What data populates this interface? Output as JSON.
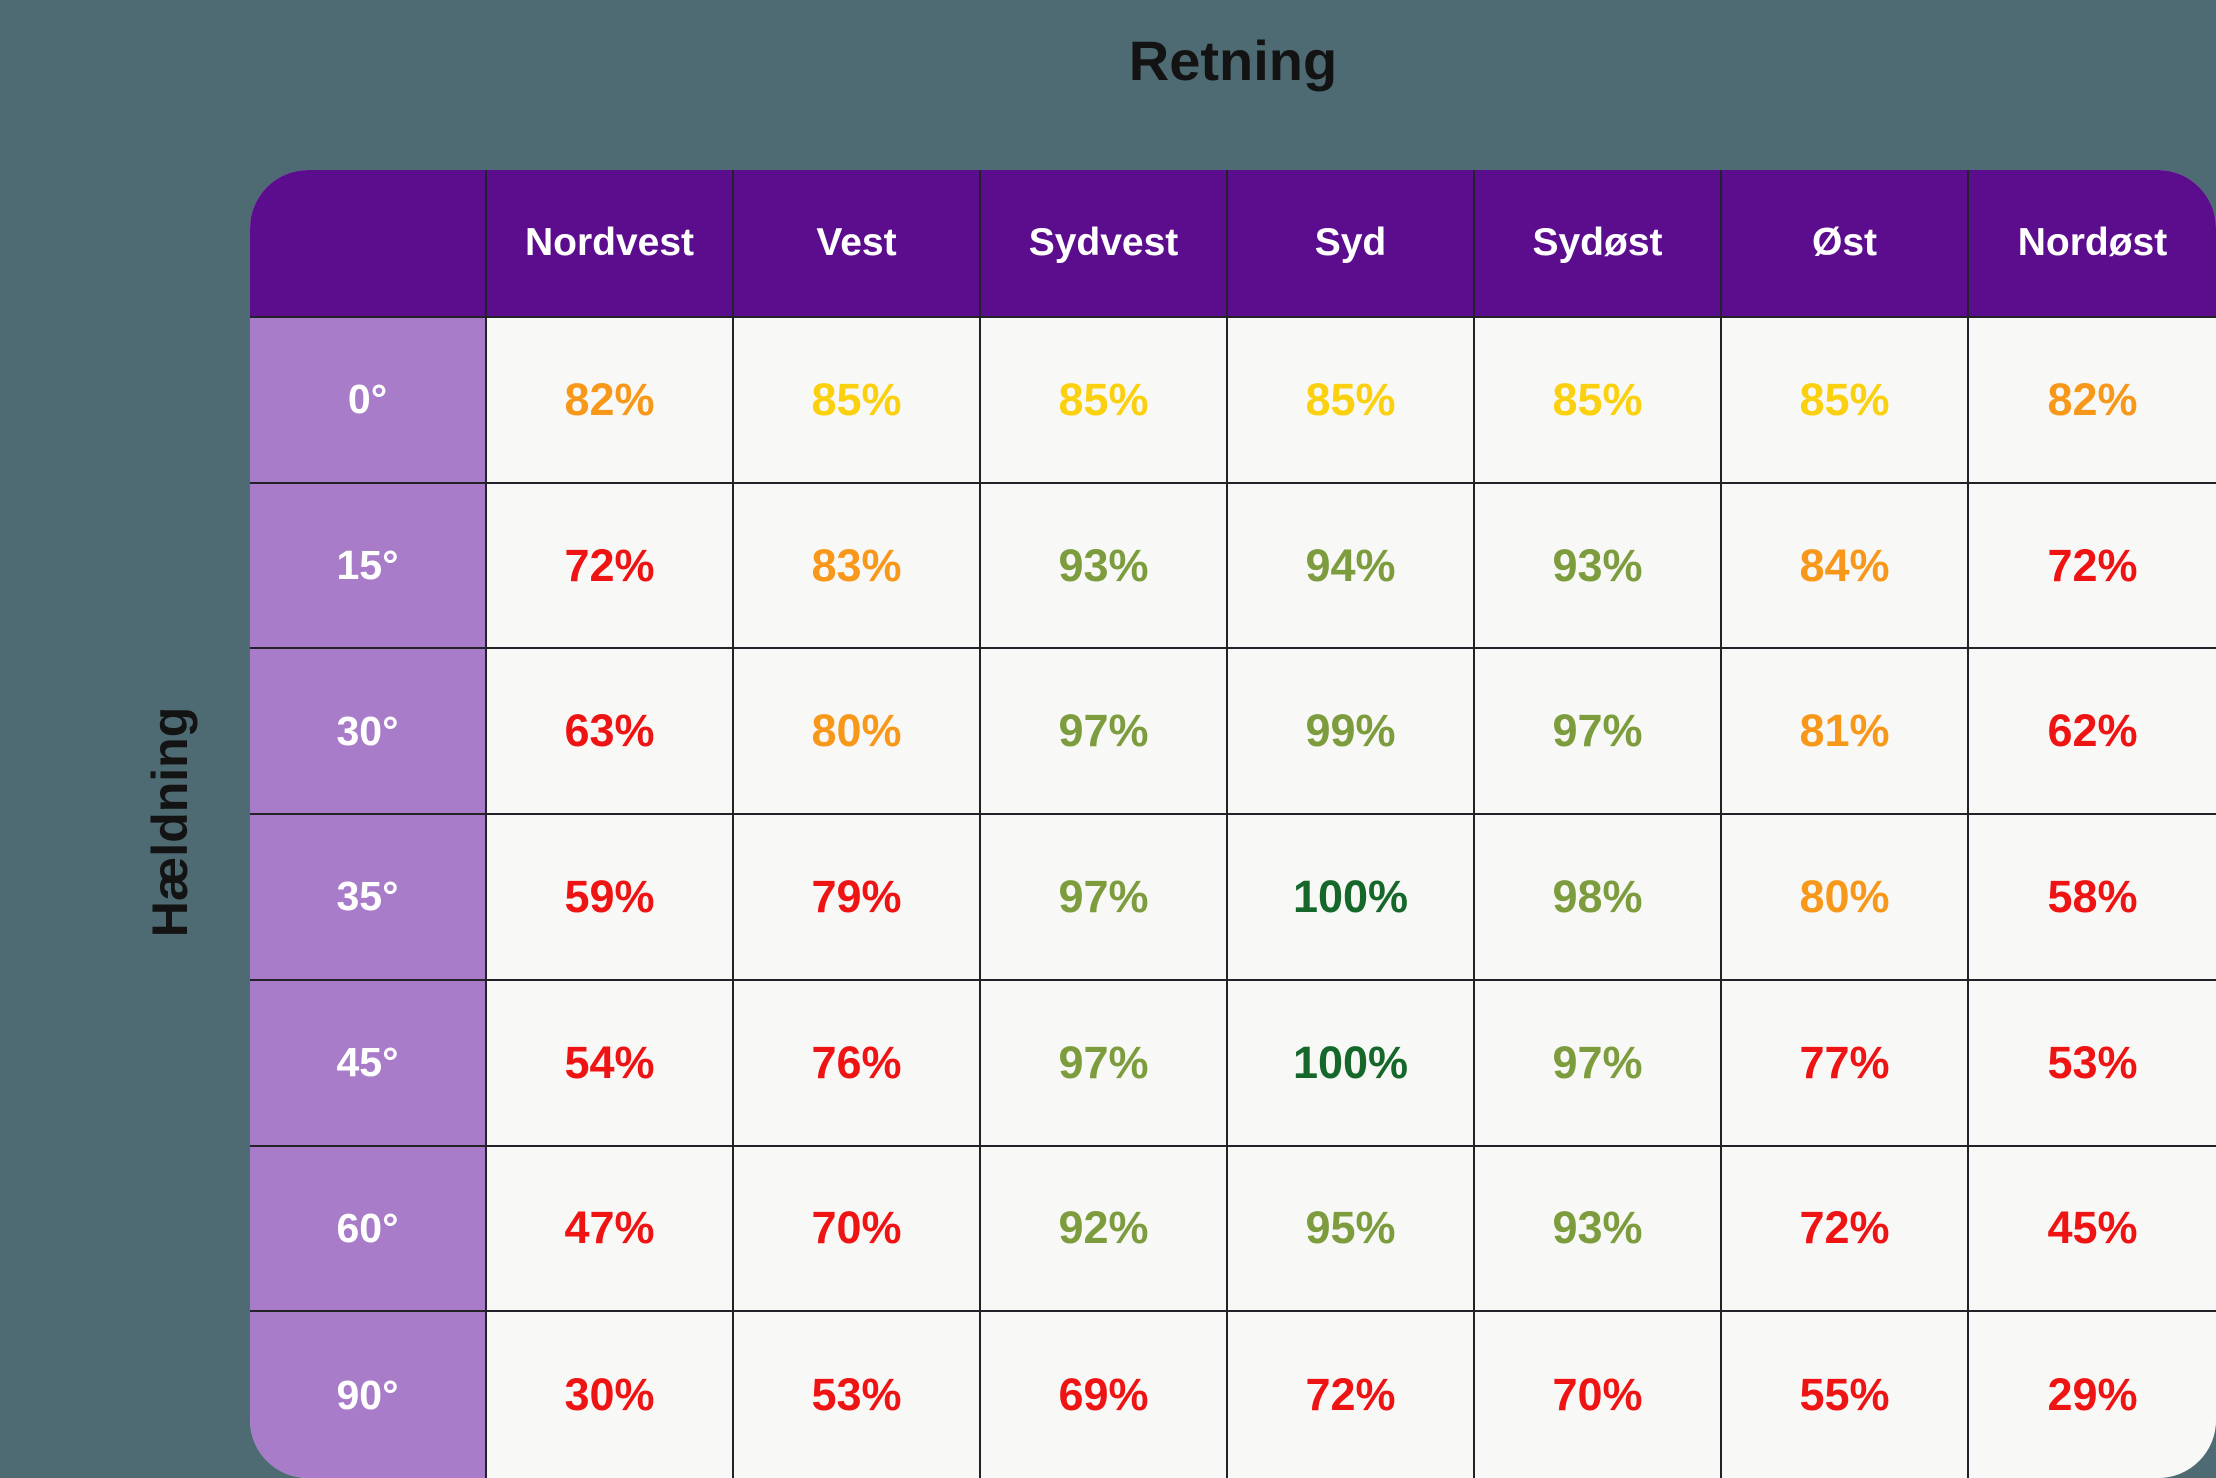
{
  "title": "Retning",
  "side_label": "Hældning",
  "colors": {
    "background": "#4e6a72",
    "header_purple": "#5c0d8d",
    "row_label_purple": "#a87cc8",
    "cell_background": "#f8f8f7",
    "grid_line": "#222228",
    "value_red": "#ef1414",
    "value_orange": "#f8981b",
    "value_yellow": "#fbd00e",
    "value_green": "#7c9c3d",
    "value_darkgreen": "#15682a"
  },
  "table": {
    "columns": [
      "Nordvest",
      "Vest",
      "Sydvest",
      "Syd",
      "Sydøst",
      "Øst",
      "Nordøst"
    ],
    "rows": [
      {
        "label": "0°",
        "cells": [
          {
            "value": "82%",
            "level": "orange"
          },
          {
            "value": "85%",
            "level": "yellow"
          },
          {
            "value": "85%",
            "level": "yellow"
          },
          {
            "value": "85%",
            "level": "yellow"
          },
          {
            "value": "85%",
            "level": "yellow"
          },
          {
            "value": "85%",
            "level": "yellow"
          },
          {
            "value": "82%",
            "level": "orange"
          }
        ]
      },
      {
        "label": "15°",
        "cells": [
          {
            "value": "72%",
            "level": "red"
          },
          {
            "value": "83%",
            "level": "orange"
          },
          {
            "value": "93%",
            "level": "green"
          },
          {
            "value": "94%",
            "level": "green"
          },
          {
            "value": "93%",
            "level": "green"
          },
          {
            "value": "84%",
            "level": "orange"
          },
          {
            "value": "72%",
            "level": "red"
          }
        ]
      },
      {
        "label": "30°",
        "cells": [
          {
            "value": "63%",
            "level": "red"
          },
          {
            "value": "80%",
            "level": "orange"
          },
          {
            "value": "97%",
            "level": "green"
          },
          {
            "value": "99%",
            "level": "green"
          },
          {
            "value": "97%",
            "level": "green"
          },
          {
            "value": "81%",
            "level": "orange"
          },
          {
            "value": "62%",
            "level": "red"
          }
        ]
      },
      {
        "label": "35°",
        "cells": [
          {
            "value": "59%",
            "level": "red"
          },
          {
            "value": "79%",
            "level": "red"
          },
          {
            "value": "97%",
            "level": "green"
          },
          {
            "value": "100%",
            "level": "darkgreen"
          },
          {
            "value": "98%",
            "level": "green"
          },
          {
            "value": "80%",
            "level": "orange"
          },
          {
            "value": "58%",
            "level": "red"
          }
        ]
      },
      {
        "label": "45°",
        "cells": [
          {
            "value": "54%",
            "level": "red"
          },
          {
            "value": "76%",
            "level": "red"
          },
          {
            "value": "97%",
            "level": "green"
          },
          {
            "value": "100%",
            "level": "darkgreen"
          },
          {
            "value": "97%",
            "level": "green"
          },
          {
            "value": "77%",
            "level": "red"
          },
          {
            "value": "53%",
            "level": "red"
          }
        ]
      },
      {
        "label": "60°",
        "cells": [
          {
            "value": "47%",
            "level": "red"
          },
          {
            "value": "70%",
            "level": "red"
          },
          {
            "value": "92%",
            "level": "green"
          },
          {
            "value": "95%",
            "level": "green"
          },
          {
            "value": "93%",
            "level": "green"
          },
          {
            "value": "72%",
            "level": "red"
          },
          {
            "value": "45%",
            "level": "red"
          }
        ]
      },
      {
        "label": "90°",
        "cells": [
          {
            "value": "30%",
            "level": "red"
          },
          {
            "value": "53%",
            "level": "red"
          },
          {
            "value": "69%",
            "level": "red"
          },
          {
            "value": "72%",
            "level": "red"
          },
          {
            "value": "70%",
            "level": "red"
          },
          {
            "value": "55%",
            "level": "red"
          },
          {
            "value": "29%",
            "level": "red"
          }
        ]
      }
    ]
  },
  "chart_data": {
    "type": "heatmap",
    "title": "Retning",
    "xlabel": "Retning",
    "ylabel": "Hældning",
    "columns": [
      "Nordvest",
      "Vest",
      "Sydvest",
      "Syd",
      "Sydøst",
      "Øst",
      "Nordøst"
    ],
    "rows": [
      "0°",
      "15°",
      "30°",
      "35°",
      "45°",
      "60°",
      "90°"
    ],
    "values_percent": [
      [
        82,
        85,
        85,
        85,
        85,
        85,
        82
      ],
      [
        72,
        83,
        93,
        94,
        93,
        84,
        72
      ],
      [
        63,
        80,
        97,
        99,
        97,
        81,
        62
      ],
      [
        59,
        79,
        97,
        100,
        98,
        80,
        58
      ],
      [
        54,
        76,
        97,
        100,
        97,
        77,
        53
      ],
      [
        47,
        70,
        92,
        95,
        93,
        72,
        45
      ],
      [
        30,
        53,
        69,
        72,
        70,
        55,
        29
      ]
    ],
    "value_color_levels": [
      [
        "orange",
        "yellow",
        "yellow",
        "yellow",
        "yellow",
        "yellow",
        "orange"
      ],
      [
        "red",
        "orange",
        "green",
        "green",
        "green",
        "orange",
        "red"
      ],
      [
        "red",
        "orange",
        "green",
        "green",
        "green",
        "orange",
        "red"
      ],
      [
        "red",
        "red",
        "green",
        "darkgreen",
        "green",
        "orange",
        "red"
      ],
      [
        "red",
        "red",
        "green",
        "darkgreen",
        "green",
        "red",
        "red"
      ],
      [
        "red",
        "red",
        "green",
        "green",
        "green",
        "red",
        "red"
      ],
      [
        "red",
        "red",
        "red",
        "red",
        "red",
        "red",
        "red"
      ]
    ],
    "value_range": [
      0,
      100
    ]
  }
}
